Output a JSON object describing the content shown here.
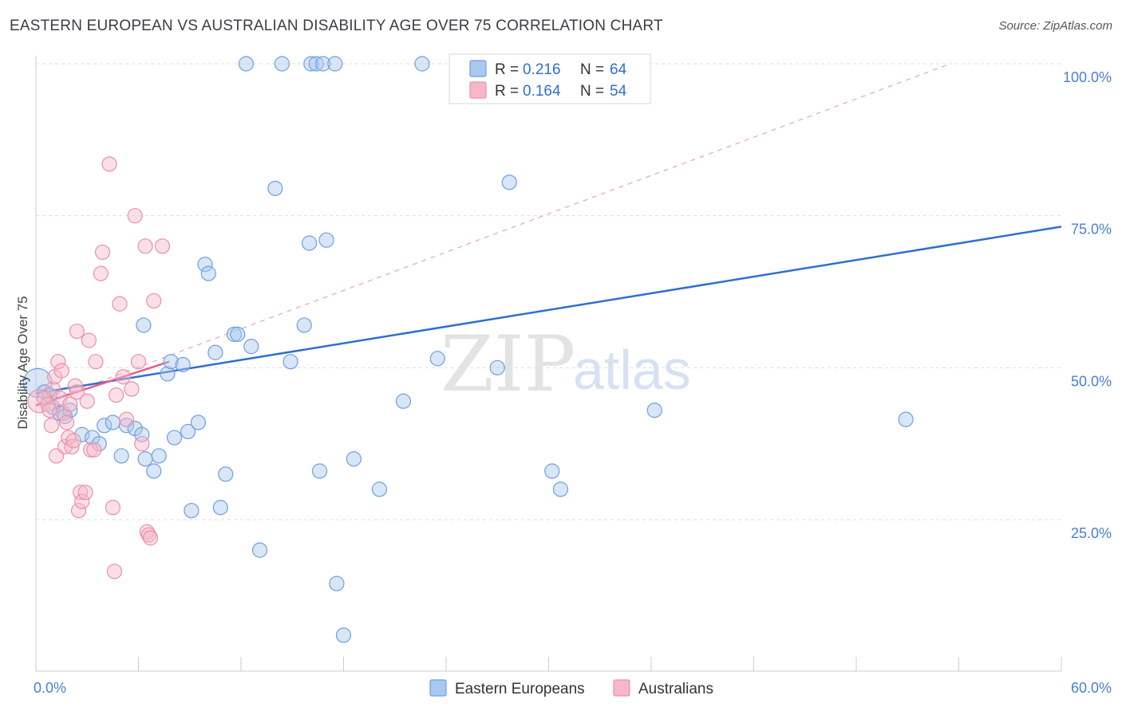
{
  "title": "EASTERN EUROPEAN VS AUSTRALIAN DISABILITY AGE OVER 75 CORRELATION CHART",
  "source": "Source: ZipAtlas.com",
  "watermark": {
    "zip": "ZIP",
    "atlas": "atlas"
  },
  "legend": {
    "r_label": "R =",
    "n_label": "N =",
    "items": [
      {
        "r": "0.216",
        "n": "64"
      },
      {
        "r": "0.164",
        "n": "54"
      }
    ]
  },
  "bottom_legend": [
    "Eastern Europeans",
    "Australians"
  ],
  "colors": {
    "blue_fill": "#a9c8f0",
    "blue_stroke": "#6f9fdd",
    "blue_line": "#2f6fcf",
    "pink_fill": "#f6b7c9",
    "pink_stroke": "#e990ab",
    "pink_line": "#e0608a",
    "tick_text": "#4a7fd0",
    "grid": "#dddddd"
  },
  "chart_data": {
    "type": "scatter",
    "title": "EASTERN EUROPEAN VS AUSTRALIAN DISABILITY AGE OVER 75 CORRELATION CHART",
    "xlabel": "",
    "ylabel": "Disability Age Over 75",
    "xlim": [
      0,
      60
    ],
    "ylim": [
      0,
      105
    ],
    "x_tick_labels": [
      "0.0%",
      "60.0%"
    ],
    "y_ticks": [
      25,
      50,
      75,
      100
    ],
    "y_tick_labels": [
      "25.0%",
      "50.0%",
      "75.0%",
      "100.0%"
    ],
    "grid": true,
    "legend_position": "top-center",
    "series": [
      {
        "name": "Eastern Europeans",
        "r": 0.216,
        "n": 64,
        "trend": {
          "x": [
            0,
            60
          ],
          "y": [
            45.8,
            73.2
          ]
        },
        "points": [
          [
            0.1,
            47.5,
            2.0
          ],
          [
            0.5,
            46.0,
            1
          ],
          [
            0.8,
            45.5,
            1
          ],
          [
            1.0,
            43.5,
            1
          ],
          [
            1.4,
            42.5,
            1
          ],
          [
            1.7,
            42.0,
            1
          ],
          [
            2.0,
            43.0,
            1
          ],
          [
            2.7,
            39.0,
            1
          ],
          [
            3.3,
            38.5,
            1
          ],
          [
            3.7,
            37.5,
            1
          ],
          [
            4.0,
            40.5,
            1
          ],
          [
            4.5,
            41.0,
            1
          ],
          [
            5.0,
            35.5,
            1
          ],
          [
            5.3,
            40.5,
            1
          ],
          [
            5.8,
            40.0,
            1
          ],
          [
            6.2,
            39.0,
            1
          ],
          [
            6.4,
            35.0,
            1
          ],
          [
            6.9,
            33.0,
            1
          ],
          [
            7.2,
            35.5,
            1
          ],
          [
            7.7,
            49.0,
            1
          ],
          [
            7.9,
            51.0,
            1
          ],
          [
            8.1,
            38.5,
            1
          ],
          [
            8.6,
            50.5,
            1
          ],
          [
            8.9,
            39.5,
            1
          ],
          [
            9.1,
            26.5,
            1
          ],
          [
            9.5,
            41.0,
            1
          ],
          [
            9.9,
            67.0,
            1
          ],
          [
            10.1,
            65.5,
            1
          ],
          [
            10.5,
            52.5,
            1
          ],
          [
            10.8,
            27.0,
            1
          ],
          [
            11.1,
            32.5,
            1
          ],
          [
            11.6,
            55.5,
            1
          ],
          [
            11.8,
            55.5,
            1
          ],
          [
            12.6,
            53.5,
            1
          ],
          [
            13.1,
            20.0,
            1
          ],
          [
            14.0,
            79.5,
            1
          ],
          [
            14.9,
            51.0,
            1
          ],
          [
            15.7,
            57.0,
            1
          ],
          [
            16.0,
            70.5,
            1
          ],
          [
            16.6,
            33.0,
            1
          ],
          [
            17.0,
            71.0,
            1
          ],
          [
            17.6,
            14.5,
            1
          ],
          [
            18.0,
            6.0,
            1
          ],
          [
            18.6,
            35.0,
            1
          ],
          [
            20.1,
            30.0,
            1
          ],
          [
            21.5,
            44.5,
            1
          ],
          [
            23.5,
            51.5,
            1
          ],
          [
            27.0,
            50.0,
            1
          ],
          [
            27.7,
            80.5,
            1
          ],
          [
            30.2,
            33.0,
            1
          ],
          [
            30.7,
            30.0,
            1
          ],
          [
            36.2,
            43.0,
            1
          ],
          [
            50.9,
            41.5,
            1
          ],
          [
            6.3,
            57.0,
            1
          ],
          [
            12.3,
            100.0,
            1
          ],
          [
            14.4,
            100.0,
            1
          ],
          [
            16.1,
            100.0,
            1
          ],
          [
            16.4,
            100.0,
            1
          ],
          [
            16.8,
            100.0,
            1
          ],
          [
            17.5,
            100.0,
            1
          ],
          [
            22.6,
            100.0,
            1
          ],
          [
            33.4,
            100.0,
            1
          ]
        ]
      },
      {
        "name": "Australians",
        "r": 0.164,
        "n": 54,
        "trend": {
          "x": [
            0,
            7.8
          ],
          "y": [
            43.8,
            51.0
          ]
        },
        "dashed_trend": {
          "x": [
            0,
            53.5
          ],
          "y": [
            43.8,
            100.0
          ]
        },
        "points": [
          [
            0.2,
            44.5,
            1.6
          ],
          [
            0.5,
            45.0,
            1
          ],
          [
            0.7,
            44.0,
            1
          ],
          [
            0.8,
            43.0,
            1
          ],
          [
            0.9,
            40.5,
            1
          ],
          [
            1.0,
            46.5,
            1
          ],
          [
            1.1,
            48.5,
            1
          ],
          [
            1.2,
            35.5,
            1
          ],
          [
            1.3,
            51.0,
            1
          ],
          [
            1.4,
            45.0,
            1
          ],
          [
            1.5,
            49.5,
            1
          ],
          [
            1.6,
            42.5,
            1
          ],
          [
            1.7,
            37.0,
            1
          ],
          [
            1.8,
            41.0,
            1
          ],
          [
            1.9,
            38.5,
            1
          ],
          [
            2.0,
            44.0,
            1
          ],
          [
            2.1,
            37.0,
            1
          ],
          [
            2.2,
            38.0,
            1
          ],
          [
            2.3,
            47.0,
            1
          ],
          [
            2.4,
            46.0,
            1
          ],
          [
            2.4,
            56.0,
            1
          ],
          [
            2.5,
            26.5,
            1
          ],
          [
            2.6,
            29.5,
            1
          ],
          [
            2.7,
            28.0,
            1
          ],
          [
            2.9,
            29.5,
            1
          ],
          [
            3.0,
            44.5,
            1
          ],
          [
            3.1,
            54.5,
            1
          ],
          [
            3.2,
            36.5,
            1
          ],
          [
            3.4,
            36.5,
            1
          ],
          [
            3.5,
            51.0,
            1
          ],
          [
            3.8,
            65.5,
            1
          ],
          [
            3.9,
            69.0,
            1
          ],
          [
            4.3,
            83.5,
            1
          ],
          [
            4.5,
            27.0,
            1
          ],
          [
            4.6,
            16.5,
            1
          ],
          [
            4.7,
            45.5,
            1
          ],
          [
            4.9,
            60.5,
            1
          ],
          [
            5.1,
            48.5,
            1
          ],
          [
            5.3,
            41.5,
            1
          ],
          [
            5.6,
            46.5,
            1
          ],
          [
            5.8,
            75.0,
            1
          ],
          [
            6.0,
            51.0,
            1
          ],
          [
            6.2,
            37.5,
            1
          ],
          [
            6.4,
            70.0,
            1
          ],
          [
            6.5,
            23.0,
            1
          ],
          [
            6.6,
            22.5,
            1
          ],
          [
            6.7,
            22.0,
            1
          ],
          [
            6.9,
            61.0,
            1
          ],
          [
            7.4,
            70.0,
            1
          ]
        ]
      }
    ]
  }
}
